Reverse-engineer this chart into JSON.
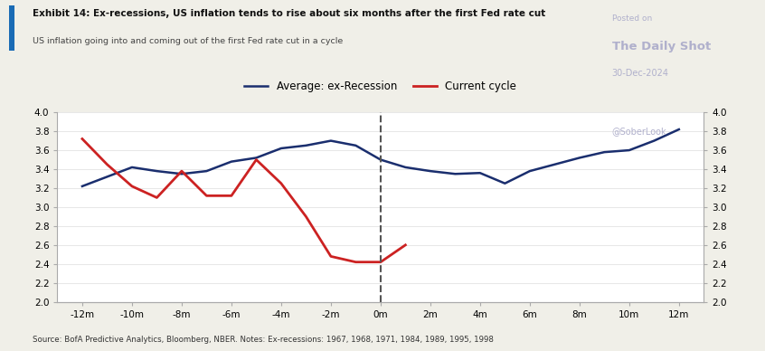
{
  "title_bold": "Exhibit 14: Ex-recessions, US inflation tends to rise about six months after the first Fed rate cut",
  "subtitle": "US inflation going into and coming out of the first Fed rate cut in a cycle",
  "source": "Source: BofA Predictive Analytics, Bloomberg, NBER. Notes: Ex-recessions: 1967, 1968, 1971, 1984, 1989, 1995, 1998",
  "watermark_line1": "Posted on",
  "watermark_line2": "The Daily Shot",
  "watermark_line3": "30-Dec-2024",
  "watermark_line4": "@SoberLook",
  "x_ticks": [
    -12,
    -10,
    -8,
    -6,
    -4,
    -2,
    0,
    2,
    4,
    6,
    8,
    10,
    12
  ],
  "x_tick_labels": [
    "-12m",
    "-10m",
    "-8m",
    "-6m",
    "-4m",
    "-2m",
    "0m",
    "2m",
    "4m",
    "6m",
    "8m",
    "10m",
    "12m"
  ],
  "ylim": [
    2.0,
    4.0
  ],
  "yticks": [
    2.0,
    2.2,
    2.4,
    2.6,
    2.8,
    3.0,
    3.2,
    3.4,
    3.6,
    3.8,
    4.0
  ],
  "avg_x": [
    -12,
    -11,
    -10,
    -9,
    -8,
    -7,
    -6,
    -5,
    -4,
    -3,
    -2,
    -1,
    0,
    1,
    2,
    3,
    4,
    5,
    6,
    7,
    8,
    9,
    10,
    11,
    12
  ],
  "avg_y": [
    3.22,
    3.32,
    3.42,
    3.38,
    3.35,
    3.38,
    3.48,
    3.52,
    3.62,
    3.65,
    3.7,
    3.65,
    3.5,
    3.42,
    3.38,
    3.35,
    3.36,
    3.25,
    3.38,
    3.45,
    3.52,
    3.58,
    3.6,
    3.7,
    3.82
  ],
  "current_x": [
    -12,
    -11,
    -10,
    -9,
    -8,
    -7,
    -6,
    -5,
    -4,
    -3,
    -2,
    -1,
    0,
    1
  ],
  "current_y": [
    3.72,
    3.45,
    3.22,
    3.1,
    3.38,
    3.12,
    3.12,
    3.5,
    3.25,
    2.9,
    2.48,
    2.42,
    2.42,
    2.6
  ],
  "avg_color": "#1a2e6e",
  "current_color": "#cc2222",
  "avg_label": "Average: ex-Recession",
  "current_label": "Current cycle",
  "vline_x": 0,
  "background_color": "#f0efe8",
  "plot_bg_color": "#ffffff",
  "border_color_left": "#1a6bb5"
}
